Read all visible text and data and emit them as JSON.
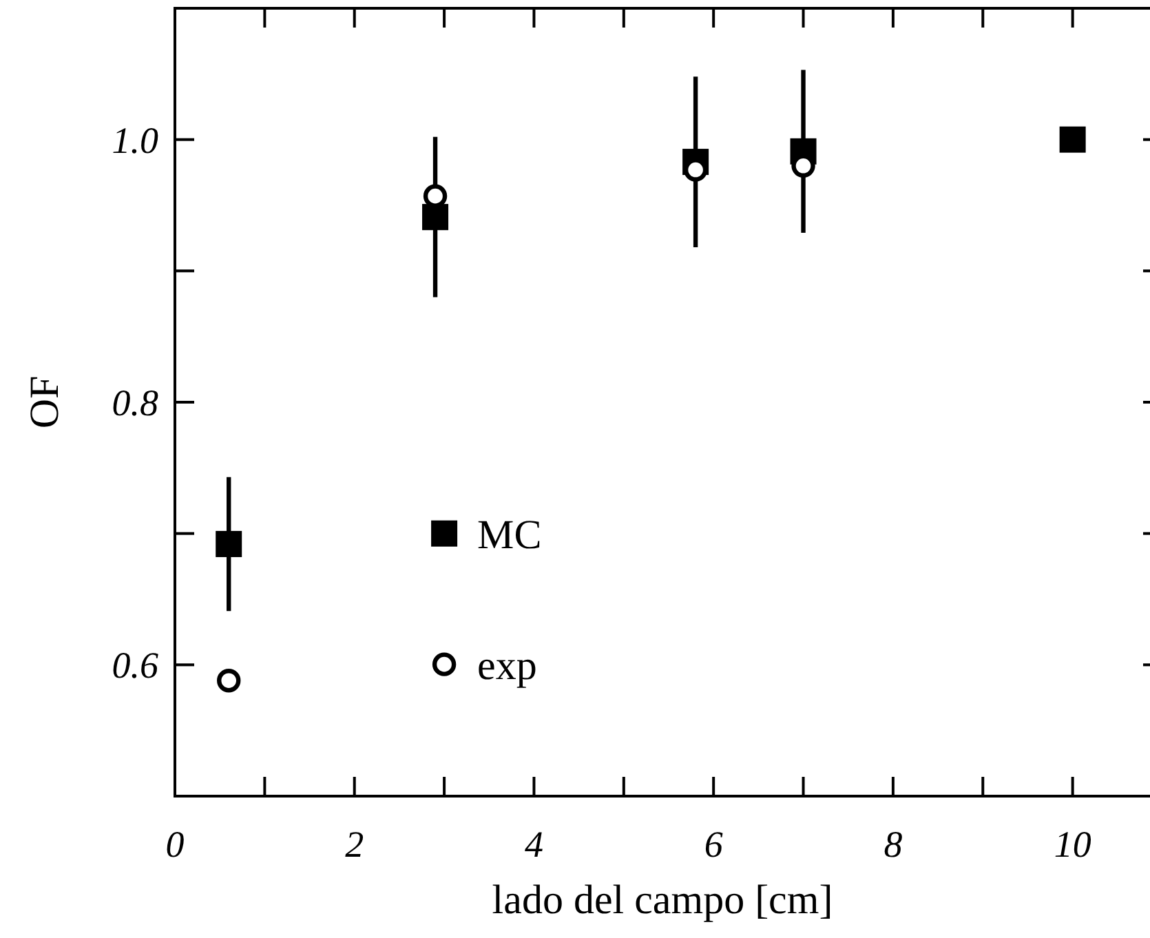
{
  "chart_data": {
    "type": "scatter",
    "xlabel": "lado del campo [cm]",
    "ylabel": "OF",
    "x": [
      0.6,
      2.9,
      5.8,
      7,
      10
    ],
    "xlim": [
      0,
      11
    ],
    "xticks": [
      0,
      {
        "value": 1,
        "label": null
      },
      2,
      {
        "value": 3,
        "label": null
      },
      4,
      {
        "value": 5,
        "label": null
      },
      6,
      {
        "value": 7,
        "label": null
      },
      8,
      {
        "value": 9,
        "label": null
      },
      10
    ],
    "ylim": [
      0.5,
      1.1
    ],
    "yticks": [
      {
        "value": 0.6,
        "label": "0.6"
      },
      {
        "value": 0.7,
        "label": null
      },
      {
        "value": 0.8,
        "label": "0.8"
      },
      {
        "value": 0.9,
        "label": null
      },
      {
        "value": 1,
        "label": "1.0"
      }
    ],
    "grid": false,
    "legend": "bottom",
    "series": [
      {
        "name": "MC",
        "color": "#000000",
        "marker": "square",
        "values": [
          0.692,
          0.941,
          0.983,
          0.991,
          1.0
        ],
        "errors": [
          0.051,
          0.061,
          0.065,
          0.062,
          null
        ]
      },
      {
        "name": "exp",
        "color": "#000000",
        "marker": "circle",
        "values": [
          0.588,
          0.957,
          0.977,
          0.98,
          null
        ]
      }
    ]
  }
}
